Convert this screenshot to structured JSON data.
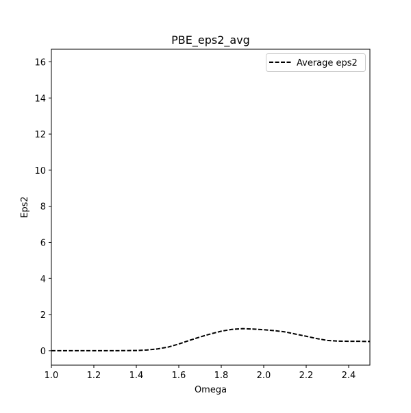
{
  "chart_data": {
    "type": "line",
    "title": "PBE_eps2_avg",
    "xlabel": "Omega",
    "ylabel": "Eps2",
    "xlim": [
      1.0,
      2.5
    ],
    "ylim": [
      -0.8,
      16.7
    ],
    "xticks": [
      1.0,
      1.2,
      1.4,
      1.6,
      1.8,
      2.0,
      2.2,
      2.4
    ],
    "xtick_labels": [
      "1.0",
      "1.2",
      "1.4",
      "1.6",
      "1.8",
      "2.0",
      "2.2",
      "2.4"
    ],
    "yticks": [
      0,
      2,
      4,
      6,
      8,
      10,
      12,
      14,
      16
    ],
    "ytick_labels": [
      "0",
      "2",
      "4",
      "6",
      "8",
      "10",
      "12",
      "14",
      "16"
    ],
    "grid": false,
    "legend": {
      "position": "top-right"
    },
    "series": [
      {
        "name": "Average eps2",
        "color": "#000000",
        "line_style": "dashed",
        "x": [
          1.0,
          1.1,
          1.2,
          1.3,
          1.4,
          1.45,
          1.5,
          1.55,
          1.6,
          1.65,
          1.7,
          1.75,
          1.8,
          1.85,
          1.9,
          1.95,
          2.0,
          2.05,
          2.1,
          2.15,
          2.2,
          2.25,
          2.3,
          2.35,
          2.4,
          2.45,
          2.5
        ],
        "y": [
          0.0,
          0.0,
          0.0,
          0.0,
          0.01,
          0.04,
          0.1,
          0.2,
          0.37,
          0.57,
          0.76,
          0.93,
          1.08,
          1.18,
          1.22,
          1.2,
          1.16,
          1.11,
          1.04,
          0.92,
          0.8,
          0.67,
          0.57,
          0.53,
          0.52,
          0.52,
          0.51
        ]
      }
    ]
  }
}
